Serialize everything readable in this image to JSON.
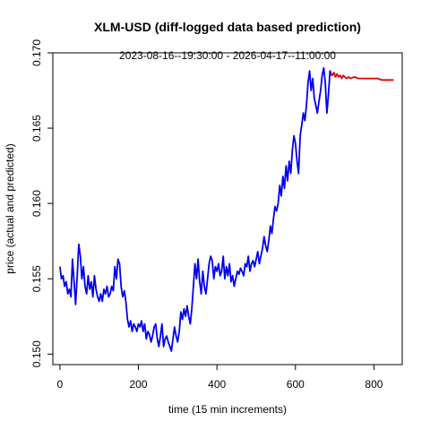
{
  "chart_data": {
    "type": "line",
    "title": "XLM-USD (diff-logged data based prediction)",
    "subtitle": "2023-08-16--19:30:00  -  2026-04-17--11:00:00",
    "xlabel": "time (15 min increments)",
    "ylabel": "price (actual and predicted)",
    "xlim": [
      -18,
      872
    ],
    "ylim": [
      0.1493,
      0.17
    ],
    "xticks": [
      0,
      200,
      400,
      600,
      800
    ],
    "yticks": [
      0.15,
      0.155,
      0.16,
      0.165,
      0.17
    ],
    "ytick_labels": [
      "0.150",
      "0.155",
      "0.160",
      "0.165",
      "0.170"
    ],
    "grid": false,
    "series": [
      {
        "color": "#0000ee",
        "x": [
          0,
          4,
          8,
          12,
          16,
          20,
          24,
          28,
          32,
          36,
          40,
          44,
          48,
          52,
          56,
          60,
          64,
          68,
          72,
          76,
          80,
          84,
          88,
          92,
          96,
          100,
          104,
          108,
          112,
          116,
          120,
          124,
          128,
          132,
          136,
          140,
          144,
          148,
          152,
          156,
          160,
          164,
          168,
          172,
          176,
          180,
          184,
          188,
          192,
          196,
          200,
          204,
          208,
          212,
          216,
          220,
          224,
          228,
          232,
          236,
          240,
          244,
          248,
          252,
          256,
          260,
          264,
          268,
          272,
          276,
          280,
          284,
          288,
          292,
          296,
          300,
          304,
          308,
          312,
          316,
          320,
          324,
          328,
          332,
          336,
          340,
          344,
          348,
          352,
          356,
          360,
          364,
          368,
          372,
          376,
          380,
          384,
          388,
          392,
          396,
          400,
          404,
          408,
          412,
          416,
          420,
          424,
          428,
          432,
          436,
          440,
          444,
          448,
          452,
          456,
          460,
          464,
          468,
          472,
          476,
          480,
          484,
          488,
          492,
          496,
          500,
          504,
          508,
          512,
          516,
          520,
          524,
          528,
          532,
          536,
          540,
          544,
          548,
          552,
          556,
          560,
          564,
          568,
          572,
          576,
          580,
          584,
          588,
          592,
          596,
          600,
          604,
          608,
          612,
          616,
          620,
          624,
          628,
          632,
          636,
          640,
          644,
          648,
          652,
          656,
          660,
          664,
          668,
          672,
          676,
          680,
          684,
          688,
          692
        ],
        "y": [
          0.1558,
          0.155,
          0.1552,
          0.1545,
          0.1548,
          0.154,
          0.1543,
          0.1538,
          0.1563,
          0.1548,
          0.1533,
          0.1552,
          0.1573,
          0.1565,
          0.155,
          0.1558,
          0.1545,
          0.154,
          0.1552,
          0.1543,
          0.1548,
          0.1538,
          0.1552,
          0.1543,
          0.1538,
          0.1535,
          0.154,
          0.1535,
          0.1543,
          0.154,
          0.1545,
          0.1538,
          0.154,
          0.1545,
          0.1542,
          0.1558,
          0.155,
          0.1563,
          0.156,
          0.1545,
          0.1538,
          0.1542,
          0.1535,
          0.1523,
          0.1518,
          0.1522,
          0.1515,
          0.152,
          0.1518,
          0.1515,
          0.152,
          0.1518,
          0.1522,
          0.1515,
          0.152,
          0.151,
          0.1515,
          0.1513,
          0.1508,
          0.1512,
          0.1518,
          0.152,
          0.151,
          0.1505,
          0.1512,
          0.152,
          0.1505,
          0.151,
          0.1512,
          0.1508,
          0.1505,
          0.1502,
          0.151,
          0.1518,
          0.1512,
          0.1508,
          0.1515,
          0.1528,
          0.1523,
          0.153,
          0.1525,
          0.1532,
          0.1525,
          0.152,
          0.153,
          0.1545,
          0.156,
          0.155,
          0.1563,
          0.1548,
          0.154,
          0.1555,
          0.1545,
          0.154,
          0.155,
          0.156,
          0.1565,
          0.1562,
          0.155,
          0.1558,
          0.1555,
          0.156,
          0.1552,
          0.1555,
          0.1565,
          0.155,
          0.1558,
          0.1552,
          0.156,
          0.1548,
          0.1552,
          0.1545,
          0.155,
          0.1555,
          0.1553,
          0.1557,
          0.1555,
          0.1552,
          0.156,
          0.1558,
          0.1565,
          0.1555,
          0.156,
          0.1562,
          0.1558,
          0.1563,
          0.1568,
          0.156,
          0.1565,
          0.157,
          0.1578,
          0.1572,
          0.1568,
          0.1575,
          0.1585,
          0.158,
          0.159,
          0.1598,
          0.1595,
          0.16,
          0.1612,
          0.1605,
          0.1618,
          0.161,
          0.1625,
          0.1615,
          0.1628,
          0.162,
          0.1635,
          0.1645,
          0.164,
          0.1628,
          0.162,
          0.1645,
          0.1652,
          0.166,
          0.1655,
          0.1665,
          0.168,
          0.1688,
          0.1675,
          0.1683,
          0.167,
          0.1665,
          0.166,
          0.1668,
          0.1675,
          0.1685,
          0.169,
          0.168,
          0.166,
          0.1672,
          0.1688,
          0.1685
        ]
      },
      {
        "color": "#dd0000",
        "x": [
          690,
          694,
          698,
          702,
          706,
          710,
          714,
          718,
          722,
          726,
          730,
          735,
          740,
          750,
          760,
          770,
          780,
          790,
          800,
          810,
          820,
          830,
          840,
          850
        ],
        "y": [
          0.1686,
          0.1685,
          0.1687,
          0.1684,
          0.1686,
          0.1684,
          0.1685,
          0.1683,
          0.1685,
          0.1684,
          0.1683,
          0.1684,
          0.1683,
          0.1684,
          0.1683,
          0.1683,
          0.1683,
          0.1683,
          0.1683,
          0.1683,
          0.1682,
          0.1682,
          0.1682,
          0.1682
        ]
      }
    ]
  }
}
